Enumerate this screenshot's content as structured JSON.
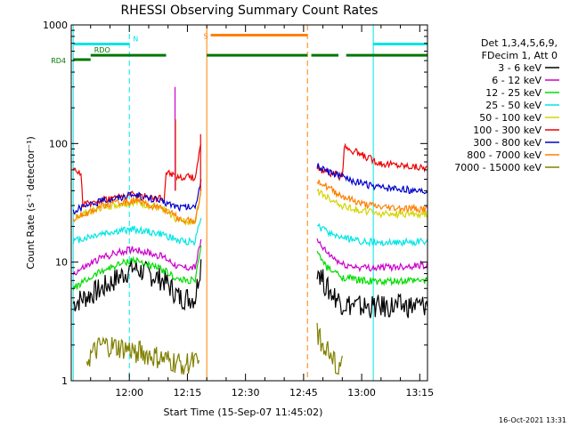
{
  "chart_data": {
    "type": "line",
    "title": "RHESSI Observing Summary Count Rates",
    "xlabel": "Start Time (15-Sep-07 11:45:02)",
    "ylabel": "Count Rate (s⁻¹ detector⁻¹)",
    "yscale": "log",
    "ylim": [
      1,
      1000
    ],
    "xlim_min": [
      0,
      92
    ],
    "x_unit": "minutes since 11:45:02",
    "x_ticks": [
      {
        "label": "12:00",
        "min": 15
      },
      {
        "label": "12:15",
        "min": 30
      },
      {
        "label": "12:30",
        "min": 45
      },
      {
        "label": "12:45",
        "min": 60
      },
      {
        "label": "13:00",
        "min": 75
      },
      {
        "label": "13:15",
        "min": 90
      }
    ],
    "y_ticks": [
      {
        "label": "1",
        "value": 1
      },
      {
        "label": "10",
        "value": 10
      },
      {
        "label": "100",
        "value": 100
      },
      {
        "label": "1000",
        "value": 1000
      }
    ],
    "legend": {
      "position": "right",
      "header": [
        "Det 1,3,4,5,6,9,",
        "FDecim 1, Att 0"
      ],
      "entries": [
        {
          "label": "3 - 6 keV",
          "color": "#000000"
        },
        {
          "label": "6 - 12 keV",
          "color": "#cc00cc"
        },
        {
          "label": "12 - 25 keV",
          "color": "#00dd00"
        },
        {
          "label": "25 - 50 keV",
          "color": "#00e5e5"
        },
        {
          "label": "50 - 100 keV",
          "color": "#d4d400"
        },
        {
          "label": "100 - 300 keV",
          "color": "#ee0000"
        },
        {
          "label": "300 - 800 keV",
          "color": "#0000cc"
        },
        {
          "label": "800 - 7000 keV",
          "color": "#ff8000"
        },
        {
          "label": "7000 - 15000 keV",
          "color": "#808000"
        }
      ]
    },
    "segments": [
      {
        "start": 0.5,
        "end": 33.5
      },
      {
        "start": 63.5,
        "end": 92
      }
    ],
    "series": [
      {
        "name": "3 - 6 keV",
        "color": "#000000",
        "seg1": [
          [
            0.5,
            4.5
          ],
          [
            8,
            6
          ],
          [
            16,
            9
          ],
          [
            24,
            7
          ],
          [
            28,
            5
          ],
          [
            32,
            5
          ],
          [
            33.5,
            10
          ]
        ],
        "seg2": [
          [
            63.5,
            9
          ],
          [
            66,
            6
          ],
          [
            70,
            4.5
          ],
          [
            75,
            4.2
          ],
          [
            80,
            4.2
          ],
          [
            92,
            4.3
          ]
        ]
      },
      {
        "name": "6 - 12 keV",
        "color": "#cc00cc",
        "seg1": [
          [
            0.5,
            8
          ],
          [
            8,
            11
          ],
          [
            16,
            13
          ],
          [
            24,
            11
          ],
          [
            28,
            9
          ],
          [
            32,
            9
          ],
          [
            33.5,
            15
          ]
        ],
        "seg2": [
          [
            63.5,
            15
          ],
          [
            66,
            12
          ],
          [
            70,
            9.5
          ],
          [
            75,
            9
          ],
          [
            80,
            9
          ],
          [
            92,
            9.5
          ]
        ]
      },
      {
        "name": "12 - 25 keV",
        "color": "#00dd00",
        "seg1": [
          [
            0.5,
            6
          ],
          [
            8,
            8.5
          ],
          [
            16,
            10.5
          ],
          [
            24,
            8.5
          ],
          [
            28,
            7
          ],
          [
            32,
            7
          ],
          [
            33.5,
            13
          ]
        ],
        "seg2": [
          [
            63.5,
            12
          ],
          [
            66,
            9
          ],
          [
            70,
            7.5
          ],
          [
            75,
            7
          ],
          [
            80,
            6.8
          ],
          [
            92,
            7
          ]
        ]
      },
      {
        "name": "25 - 50 keV",
        "color": "#00e5e5",
        "seg1": [
          [
            0.5,
            15
          ],
          [
            8,
            17.5
          ],
          [
            16,
            19
          ],
          [
            24,
            17
          ],
          [
            28,
            15
          ],
          [
            32,
            15
          ],
          [
            33.5,
            25
          ]
        ],
        "seg2": [
          [
            63.5,
            20
          ],
          [
            66,
            18
          ],
          [
            70,
            16
          ],
          [
            75,
            15
          ],
          [
            80,
            14.5
          ],
          [
            92,
            15
          ]
        ]
      },
      {
        "name": "50 - 100 keV",
        "color": "#d4d400",
        "seg1": [
          [
            0.5,
            24
          ],
          [
            8,
            29
          ],
          [
            16,
            32
          ],
          [
            24,
            28
          ],
          [
            28,
            22
          ],
          [
            32,
            22
          ],
          [
            33.5,
            40
          ]
        ],
        "seg2": [
          [
            63.5,
            40
          ],
          [
            66,
            35
          ],
          [
            70,
            30
          ],
          [
            75,
            27
          ],
          [
            80,
            25.5
          ],
          [
            92,
            25.5
          ]
        ]
      },
      {
        "name": "100 - 300 keV",
        "color": "#ee0000",
        "seg1": [
          [
            0.5,
            58
          ],
          [
            2.5,
            58
          ],
          [
            3,
            30
          ],
          [
            8,
            34
          ],
          [
            16,
            37
          ],
          [
            24,
            34
          ],
          [
            24.5,
            58
          ],
          [
            28,
            52
          ],
          [
            32,
            52
          ],
          [
            33.5,
            100
          ]
        ],
        "seg2": [
          [
            63.5,
            62
          ],
          [
            66,
            58
          ],
          [
            70,
            52
          ],
          [
            70.5,
            95
          ],
          [
            75,
            80
          ],
          [
            80,
            68
          ],
          [
            92,
            62
          ]
        ]
      },
      {
        "name": "300 - 800 keV",
        "color": "#0000cc",
        "seg1": [
          [
            0.5,
            27
          ],
          [
            8,
            33
          ],
          [
            16,
            37
          ],
          [
            24,
            32
          ],
          [
            28,
            29
          ],
          [
            32,
            29
          ],
          [
            33.5,
            50
          ]
        ],
        "seg2": [
          [
            63.5,
            65
          ],
          [
            66,
            58
          ],
          [
            70,
            52
          ],
          [
            75,
            46
          ],
          [
            80,
            42
          ],
          [
            92,
            40
          ]
        ]
      },
      {
        "name": "800 - 7000 keV",
        "color": "#ff8000",
        "seg1": [
          [
            0.5,
            23
          ],
          [
            8,
            30
          ],
          [
            16,
            33
          ],
          [
            24,
            28
          ],
          [
            28,
            23
          ],
          [
            32,
            22
          ],
          [
            33.5,
            40
          ]
        ],
        "seg2": [
          [
            63.5,
            50
          ],
          [
            66,
            43
          ],
          [
            70,
            36
          ],
          [
            75,
            31
          ],
          [
            80,
            29
          ],
          [
            92,
            28
          ]
        ]
      },
      {
        "name": "7000 - 15000 keV",
        "color": "#808000",
        "seg1": [
          [
            4,
            1.5
          ],
          [
            8,
            2
          ],
          [
            16,
            1.8
          ],
          [
            24,
            1.5
          ],
          [
            28,
            1.4
          ],
          [
            33,
            1.4
          ]
        ],
        "seg2": [
          [
            63.5,
            2.5
          ],
          [
            66,
            1.8
          ],
          [
            68,
            1.4
          ],
          [
            70,
            1.3
          ]
        ]
      }
    ],
    "spikes": [
      {
        "min": 26.8,
        "value": 300,
        "color": "#cc00cc"
      },
      {
        "min": 27.0,
        "value": 160,
        "color": "#ff8000"
      },
      {
        "min": 33.4,
        "value": 120,
        "color": "#ee0000"
      }
    ],
    "flag_bars": [
      {
        "label": "N",
        "color": "#00e5e5",
        "level": 690,
        "ranges": [
          [
            0.5,
            15
          ]
        ]
      },
      {
        "label": "",
        "color": "#00e5e5",
        "level": 690,
        "ranges": [
          [
            78,
            92
          ]
        ]
      },
      {
        "label": "RDO",
        "color": "#007700",
        "level": 555,
        "ranges": [
          [
            5,
            24.5
          ],
          [
            35,
            61
          ],
          [
            62,
            69
          ],
          [
            71,
            92
          ]
        ]
      },
      {
        "label": "RD4",
        "color": "#007700",
        "level": 510,
        "ranges": [
          [
            0.5,
            5
          ]
        ]
      },
      {
        "label": "S",
        "color": "#ff8000",
        "level": 820,
        "ranges": [
          [
            36,
            61
          ]
        ]
      }
    ],
    "vlines": [
      {
        "min": 0.5,
        "color": "#00e5e5",
        "style": "solid"
      },
      {
        "min": 15,
        "color": "#00e5e5",
        "style": "dashed"
      },
      {
        "min": 35,
        "color": "#ff8000",
        "style": "solid"
      },
      {
        "min": 61,
        "color": "#ff8000",
        "style": "dashed"
      },
      {
        "min": 78,
        "color": "#00e5e5",
        "style": "solid"
      },
      {
        "min": 92,
        "color": "#00e5e5",
        "style": "dashed"
      }
    ],
    "footer_date": "16-Oct-2021 13:31"
  }
}
